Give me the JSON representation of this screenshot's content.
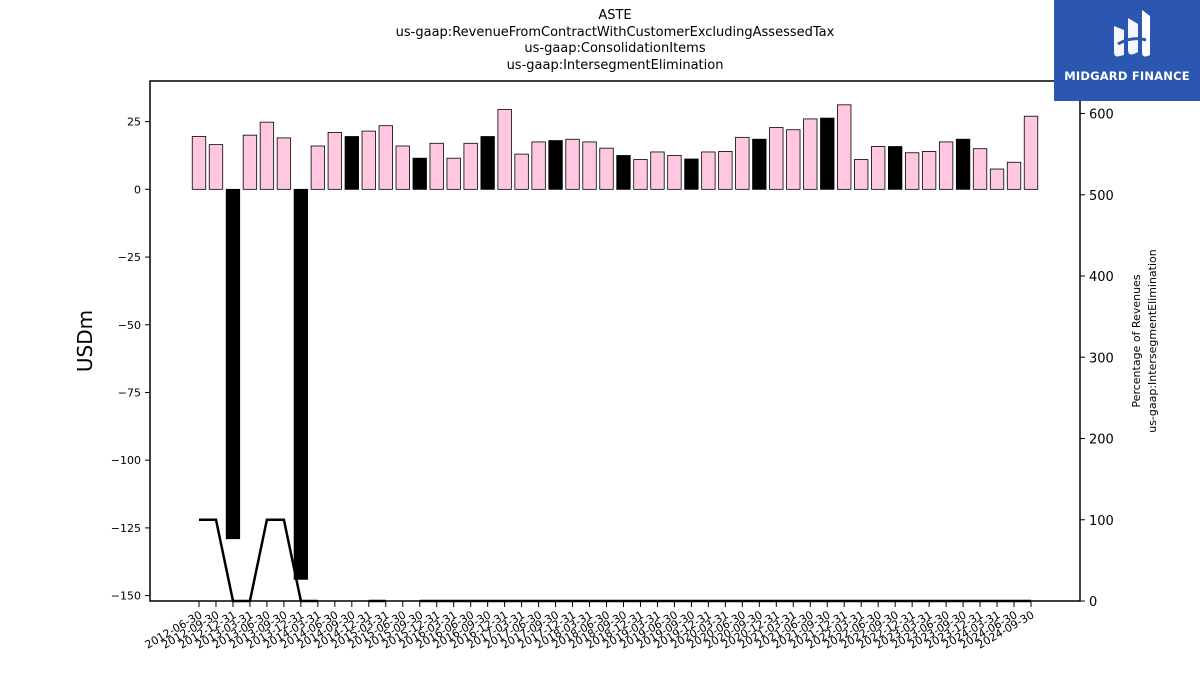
{
  "titles": [
    "ASTE",
    "us-gaap:RevenueFromContractWithCustomerExcludingAssessedTax",
    "us-gaap:ConsolidationItems",
    "us-gaap:IntersegmentElimination"
  ],
  "brand": {
    "name": "MIDGARD FINANCE",
    "background_color": "#2b57b0",
    "icon": "midgard-logo-icon"
  },
  "chart_data": {
    "type": "bar",
    "ylabel": "USDm",
    "y2label_lines": [
      "Percentage of Revenues",
      "us-gaap:IntersegmentElimination"
    ],
    "ylim": [
      -152,
      40
    ],
    "y2lim": [
      0,
      640
    ],
    "yticks": [
      25,
      0,
      -25,
      -50,
      -75,
      -100,
      -125,
      -150
    ],
    "y2ticks": [
      600,
      500,
      400,
      300,
      200,
      100,
      0
    ],
    "grid": false,
    "colors": {
      "quarter_bar": "#ffc8e0",
      "year_end_bar": "#000000",
      "line": "#000000"
    },
    "categories": [
      "2012-06-30",
      "2012-09-30",
      "2012-12-31",
      "2013-03-31",
      "2013-06-30",
      "2013-09-30",
      "2013-12-31",
      "2014-03-31",
      "2014-06-30",
      "2014-09-30",
      "2014-12-31",
      "2015-03-31",
      "2015-06-30",
      "2015-09-30",
      "2015-12-31",
      "2016-03-31",
      "2016-06-30",
      "2016-09-30",
      "2016-12-31",
      "2017-03-31",
      "2017-06-30",
      "2017-09-30",
      "2017-12-31",
      "2018-03-31",
      "2018-06-30",
      "2018-09-30",
      "2018-12-31",
      "2019-03-31",
      "2019-06-30",
      "2019-09-30",
      "2019-12-31",
      "2020-03-31",
      "2020-06-30",
      "2020-09-30",
      "2020-12-31",
      "2021-03-31",
      "2021-06-30",
      "2021-09-30",
      "2021-12-31",
      "2022-03-31",
      "2022-06-30",
      "2022-09-30",
      "2022-12-31",
      "2023-03-31",
      "2023-06-30",
      "2023-09-30",
      "2023-12-31",
      "2024-03-31",
      "2024-06-30",
      "2024-09-30"
    ],
    "series": [
      {
        "kind": "bar",
        "axis": "left",
        "values": [
          19.5,
          16.5,
          -129,
          20,
          24.8,
          19,
          -144,
          16,
          21,
          19.5,
          21.5,
          23.5,
          16,
          11.5,
          17,
          11.5,
          17,
          19.5,
          29.5,
          13,
          17.5,
          18,
          18.5,
          17.5,
          15.2,
          12.5,
          11,
          13.8,
          12.5,
          11.2,
          13.8,
          14,
          19.2,
          18.5,
          22.8,
          22,
          26,
          26.3,
          31.2,
          11,
          15.8,
          15.8,
          13.5,
          14,
          17.5,
          18.5,
          15,
          7.5,
          10,
          27
        ],
        "year_end": [
          false,
          false,
          true,
          false,
          false,
          false,
          true,
          false,
          false,
          true,
          false,
          false,
          false,
          true,
          false,
          false,
          false,
          true,
          false,
          false,
          false,
          true,
          false,
          false,
          false,
          true,
          false,
          false,
          false,
          true,
          false,
          false,
          false,
          true,
          false,
          false,
          false,
          true,
          false,
          false,
          false,
          true,
          false,
          false,
          false,
          true,
          false,
          false,
          false,
          false
        ]
      },
      {
        "kind": "line",
        "axis": "right",
        "values": [
          100,
          100,
          0,
          0,
          100,
          100,
          0,
          0,
          null,
          null,
          0,
          0,
          null,
          0,
          0,
          0,
          0,
          0,
          0,
          0,
          0,
          0,
          0,
          0,
          0,
          0,
          0,
          0,
          0,
          0,
          0,
          0,
          0,
          0,
          0,
          0,
          0,
          0,
          0,
          0,
          0,
          0,
          0,
          0,
          0,
          0,
          0,
          0,
          0,
          0
        ]
      }
    ]
  }
}
